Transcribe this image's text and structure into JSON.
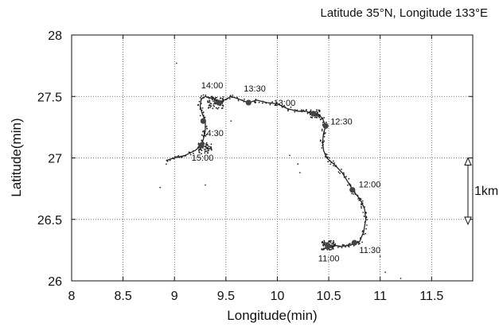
{
  "chart_data": {
    "type": "scatter",
    "title": "Latitude 35°N, Longitude 133°E",
    "xlabel": "Longitude(min)",
    "ylabel": "Latitude(min)",
    "xlim": [
      8,
      11.9
    ],
    "ylim": [
      26,
      28
    ],
    "xticks": [
      "8",
      "8.5",
      "9",
      "9.5",
      "10",
      "10.5",
      "11",
      "11.5"
    ],
    "yticks": [
      "26",
      "26.5",
      "27",
      "27.5",
      "28"
    ],
    "grid": true,
    "grid_style": "dotted",
    "scale_bar": {
      "label": "1km",
      "from_lat": 27.0,
      "to_lat": 26.46
    },
    "track": [
      [
        10.5,
        26.27
      ],
      [
        10.55,
        26.29
      ],
      [
        10.62,
        26.28
      ],
      [
        10.7,
        26.29
      ],
      [
        10.75,
        26.3
      ],
      [
        10.8,
        26.32
      ],
      [
        10.84,
        26.4
      ],
      [
        10.86,
        26.5
      ],
      [
        10.85,
        26.58
      ],
      [
        10.82,
        26.64
      ],
      [
        10.78,
        26.69
      ],
      [
        10.74,
        26.73
      ],
      [
        10.69,
        26.8
      ],
      [
        10.63,
        26.88
      ],
      [
        10.55,
        26.95
      ],
      [
        10.48,
        27.0
      ],
      [
        10.45,
        27.06
      ],
      [
        10.44,
        27.13
      ],
      [
        10.45,
        27.2
      ],
      [
        10.47,
        27.26
      ],
      [
        10.44,
        27.32
      ],
      [
        10.39,
        27.36
      ],
      [
        10.33,
        27.36
      ],
      [
        10.28,
        27.38
      ],
      [
        10.2,
        27.38
      ],
      [
        10.1,
        27.4
      ],
      [
        10.0,
        27.44
      ],
      [
        9.9,
        27.45
      ],
      [
        9.8,
        27.47
      ],
      [
        9.72,
        27.45
      ],
      [
        9.62,
        27.48
      ],
      [
        9.55,
        27.5
      ],
      [
        9.46,
        27.46
      ],
      [
        9.38,
        27.48
      ],
      [
        9.3,
        27.5
      ],
      [
        9.26,
        27.48
      ],
      [
        9.25,
        27.42
      ],
      [
        9.27,
        27.36
      ],
      [
        9.3,
        27.3
      ],
      [
        9.3,
        27.22
      ],
      [
        9.28,
        27.15
      ],
      [
        9.26,
        27.1
      ],
      [
        9.2,
        27.06
      ],
      [
        9.1,
        27.02
      ],
      [
        9.0,
        27.0
      ],
      [
        8.92,
        26.98
      ]
    ],
    "time_markers": [
      {
        "label": "11:00",
        "x": 10.49,
        "y": 26.28
      },
      {
        "label": "11:30",
        "x": 10.75,
        "y": 26.31
      },
      {
        "label": "12:00",
        "x": 10.73,
        "y": 26.74
      },
      {
        "label": "12:30",
        "x": 10.47,
        "y": 27.26
      },
      {
        "label": "13:00",
        "x": 10.35,
        "y": 27.36
      },
      {
        "label": "13:30",
        "x": 9.72,
        "y": 27.45
      },
      {
        "label": "14:00",
        "x": 9.43,
        "y": 27.45
      },
      {
        "label": "14:30",
        "x": 9.28,
        "y": 27.3
      },
      {
        "label": "15:00",
        "x": 9.26,
        "y": 27.1
      }
    ],
    "scatter_clusters": [
      {
        "x": 10.49,
        "y": 26.29,
        "spread": 0.06,
        "count": 70
      },
      {
        "x": 9.3,
        "y": 27.08,
        "spread": 0.07,
        "count": 60
      },
      {
        "x": 9.4,
        "y": 27.45,
        "spread": 0.08,
        "count": 60
      },
      {
        "x": 10.37,
        "y": 27.36,
        "spread": 0.05,
        "count": 40
      }
    ],
    "stray_points": [
      [
        9.02,
        27.77
      ],
      [
        8.92,
        26.95
      ],
      [
        8.86,
        26.76
      ],
      [
        10.12,
        27.02
      ],
      [
        10.2,
        26.95
      ],
      [
        10.22,
        26.88
      ],
      [
        11.0,
        26.2
      ],
      [
        11.05,
        26.07
      ],
      [
        11.2,
        26.02
      ],
      [
        9.55,
        27.3
      ],
      [
        9.3,
        26.78
      ]
    ]
  }
}
